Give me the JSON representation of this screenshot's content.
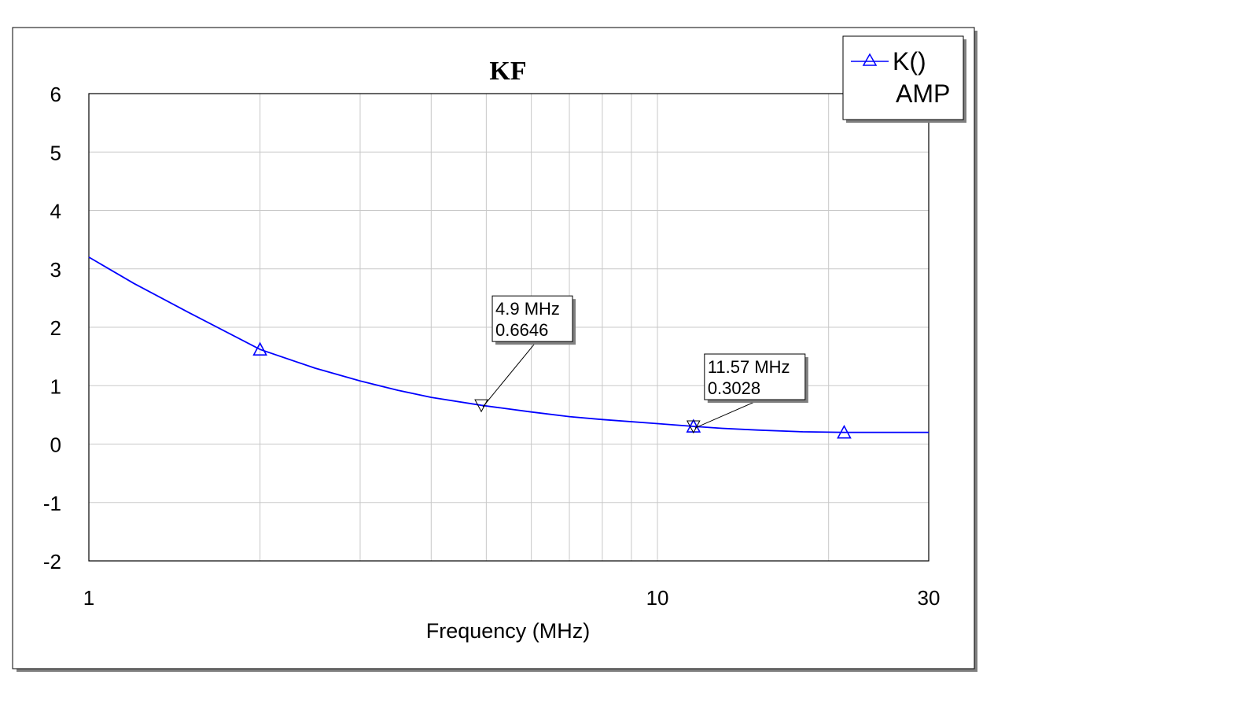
{
  "chart_data": {
    "type": "line",
    "title": "KF",
    "xlabel": "Frequency (MHz)",
    "ylabel": "",
    "x_scale": "log",
    "xlim": [
      1,
      30
    ],
    "ylim": [
      -2,
      6
    ],
    "x_ticks": [
      "1",
      "10",
      "30"
    ],
    "y_ticks": [
      "6",
      "5",
      "4",
      "3",
      "2",
      "1",
      "0",
      "-1",
      "-2"
    ],
    "grid": true,
    "legend_position": "top-right",
    "colors": {
      "series": "#0000ff",
      "grid": "#c8c8c8",
      "annotation": "#000000"
    },
    "series": [
      {
        "name": "K()",
        "subname": "AMP",
        "marker": "triangle-up",
        "x": [
          1.0,
          1.2,
          1.5,
          2.0,
          2.5,
          3.0,
          3.5,
          4.0,
          4.9,
          6.0,
          7.0,
          8.0,
          10.0,
          11.57,
          13.0,
          15.0,
          18.0,
          21.3,
          25.0,
          30.0
        ],
        "y": [
          3.2,
          2.75,
          2.25,
          1.62,
          1.3,
          1.08,
          0.92,
          0.8,
          0.6646,
          0.55,
          0.47,
          0.42,
          0.35,
          0.3028,
          0.27,
          0.24,
          0.21,
          0.2,
          0.2,
          0.2
        ],
        "marker_x": [
          2.0,
          11.57,
          21.3
        ]
      }
    ],
    "annotations": [
      {
        "x": 4.9,
        "y": 0.6646,
        "line1": "4.9 MHz",
        "line2": "0.6646"
      },
      {
        "x": 11.57,
        "y": 0.3028,
        "line1": "11.57 MHz",
        "line2": "0.3028"
      }
    ]
  }
}
